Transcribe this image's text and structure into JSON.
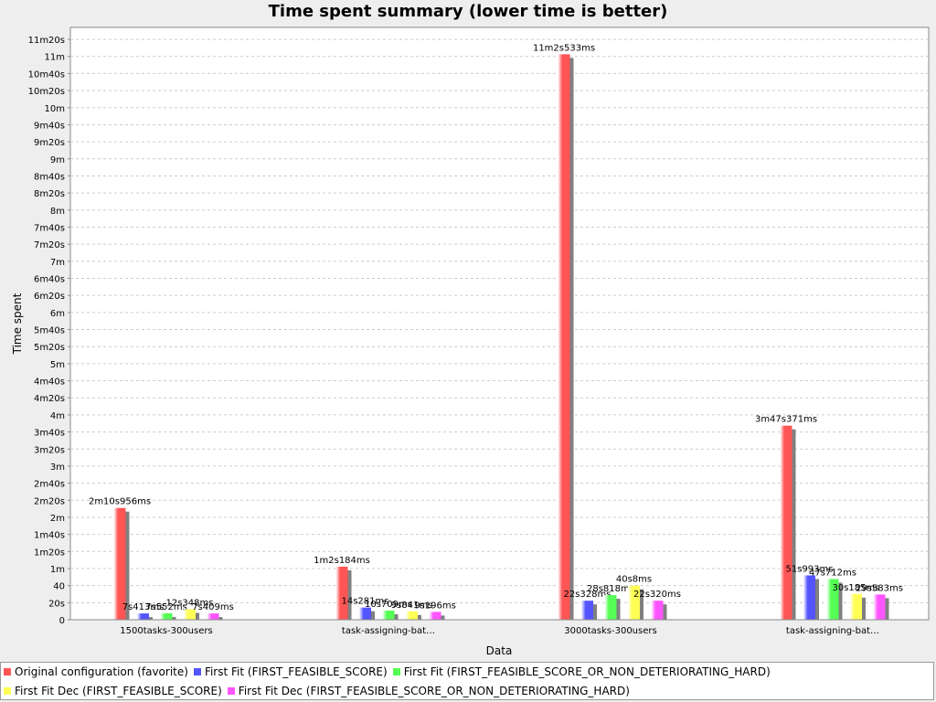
{
  "chart_data": {
    "type": "bar",
    "title": "Time spent summary (lower time is better)",
    "x_label": "Data",
    "y_label": "Time spent",
    "categories": [
      "1500tasks-300users",
      "task-assigning-bat…",
      "3000tasks-300users",
      "task-assigning-bat…"
    ],
    "series": [
      {
        "name": "Original configuration (favorite)",
        "color": "#ff5555",
        "values": [
          130.956,
          62.184,
          662.533,
          227.371
        ],
        "value_labels": [
          "2m10s956ms",
          "1m2s184ms",
          "11m2s533ms",
          "3m47s371ms"
        ]
      },
      {
        "name": "First Fit (FIRST_FEASIBLE_SCORE)",
        "color": "#5555ff",
        "values": [
          7.413,
          14.281,
          22.328,
          51.993
        ],
        "value_labels": [
          "7s413ms",
          "14s281ms",
          "22s328ms",
          "51s993ms"
        ]
      },
      {
        "name": "First Fit (FIRST_FEASIBLE_SCORE_OR_NON_DETERIORATING_HARD)",
        "color": "#55ff55",
        "values": [
          7.552,
          10.709,
          28.818,
          47.712
        ],
        "value_labels": [
          "7s552ms",
          "10s709ms",
          "28s818ms",
          "47s712ms"
        ]
      },
      {
        "name": "First Fit Dec (FIRST_FEASIBLE_SCORE)",
        "color": "#ffff55",
        "values": [
          12.348,
          9.841,
          40.008,
          30.185
        ],
        "value_labels": [
          "12s348ms",
          "9s841ms",
          "40s8ms",
          "30s185ms"
        ]
      },
      {
        "name": "First Fit Dec (FIRST_FEASIBLE_SCORE_OR_NON_DETERIORATING_HARD)",
        "color": "#ff55ff",
        "values": [
          7.409,
          9.196,
          22.32,
          29.583
        ],
        "value_labels": [
          "7s409ms",
          "9s196ms",
          "22s320ms",
          "29s583ms"
        ]
      }
    ],
    "ylim": [
      0,
      694
    ],
    "yticks": [
      0,
      {
        "value": 20,
        "label": "20s"
      },
      40,
      {
        "value": 60,
        "label": "1m"
      },
      {
        "value": 80,
        "label": "1m20s"
      },
      {
        "value": 100,
        "label": "1m40s"
      },
      {
        "value": 120,
        "label": "2m"
      },
      {
        "value": 140,
        "label": "2m20s"
      },
      {
        "value": 160,
        "label": "2m40s"
      },
      {
        "value": 180,
        "label": "3m"
      },
      {
        "value": 200,
        "label": "3m20s"
      },
      {
        "value": 220,
        "label": "3m40s"
      },
      {
        "value": 240,
        "label": "4m"
      },
      {
        "value": 260,
        "label": "4m20s"
      },
      {
        "value": 280,
        "label": "4m40s"
      },
      {
        "value": 300,
        "label": "5m"
      },
      {
        "value": 320,
        "label": "5m20s"
      },
      {
        "value": 340,
        "label": "5m40s"
      },
      {
        "value": 360,
        "label": "6m"
      },
      {
        "value": 380,
        "label": "6m20s"
      },
      {
        "value": 400,
        "label": "6m40s"
      },
      {
        "value": 420,
        "label": "7m"
      },
      {
        "value": 440,
        "label": "7m20s"
      },
      {
        "value": 460,
        "label": "7m40s"
      },
      {
        "value": 480,
        "label": "8m"
      },
      {
        "value": 500,
        "label": "8m20s"
      },
      {
        "value": 520,
        "label": "8m40s"
      },
      {
        "value": 540,
        "label": "9m"
      },
      {
        "value": 560,
        "label": "9m20s"
      },
      {
        "value": 580,
        "label": "9m40s"
      },
      {
        "value": 600,
        "label": "10m"
      },
      {
        "value": 620,
        "label": "10m20s"
      },
      {
        "value": 640,
        "label": "10m40s"
      },
      {
        "value": 660,
        "label": "11m"
      },
      {
        "value": 680,
        "label": "11m20s"
      }
    ],
    "grid": true
  }
}
